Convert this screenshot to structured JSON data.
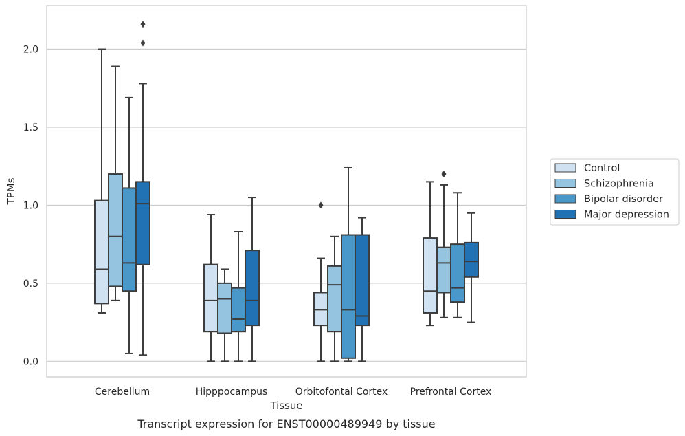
{
  "chart_data": {
    "type": "boxplot",
    "title": "",
    "caption": "Transcript expression for ENST00000489949 by tissue",
    "xlabel": "Tissue",
    "ylabel": "TPMs",
    "ylim": [
      -0.1,
      2.28
    ],
    "yticks": [
      0.0,
      0.5,
      1.0,
      1.5,
      2.0
    ],
    "ytick_labels": [
      "0.0",
      "0.5",
      "1.0",
      "1.5",
      "2.0"
    ],
    "grid": "horizontal",
    "legend_position": "right",
    "categories": [
      "Cerebellum",
      "Hipppocampus",
      "Orbitofontal Cortex",
      "Prefrontal Cortex"
    ],
    "series": [
      {
        "name": "Control",
        "color": "#d0e1f2",
        "boxes": [
          {
            "whislo": 0.31,
            "q1": 0.37,
            "med": 0.59,
            "q3": 1.03,
            "whishi": 2.0,
            "fliers": []
          },
          {
            "whislo": 0.0,
            "q1": 0.19,
            "med": 0.39,
            "q3": 0.62,
            "whishi": 0.94,
            "fliers": []
          },
          {
            "whislo": 0.0,
            "q1": 0.23,
            "med": 0.33,
            "q3": 0.44,
            "whishi": 0.66,
            "fliers": [
              1.0
            ]
          },
          {
            "whislo": 0.23,
            "q1": 0.31,
            "med": 0.45,
            "q3": 0.79,
            "whishi": 1.15,
            "fliers": []
          }
        ]
      },
      {
        "name": "Schizophrenia",
        "color": "#94c4df",
        "boxes": [
          {
            "whislo": 0.39,
            "q1": 0.48,
            "med": 0.8,
            "q3": 1.2,
            "whishi": 1.89,
            "fliers": []
          },
          {
            "whislo": 0.0,
            "q1": 0.18,
            "med": 0.4,
            "q3": 0.5,
            "whishi": 0.59,
            "fliers": []
          },
          {
            "whislo": 0.0,
            "q1": 0.19,
            "med": 0.49,
            "q3": 0.61,
            "whishi": 0.8,
            "fliers": []
          },
          {
            "whislo": 0.28,
            "q1": 0.44,
            "med": 0.63,
            "q3": 0.73,
            "whishi": 1.13,
            "fliers": [
              1.2
            ]
          }
        ]
      },
      {
        "name": "Bipolar disorder",
        "color": "#4a98c9",
        "boxes": [
          {
            "whislo": 0.05,
            "q1": 0.45,
            "med": 0.63,
            "q3": 1.11,
            "whishi": 1.69,
            "fliers": []
          },
          {
            "whislo": 0.0,
            "q1": 0.19,
            "med": 0.27,
            "q3": 0.47,
            "whishi": 0.83,
            "fliers": []
          },
          {
            "whislo": 0.0,
            "q1": 0.02,
            "med": 0.33,
            "q3": 0.81,
            "whishi": 1.24,
            "fliers": []
          },
          {
            "whislo": 0.28,
            "q1": 0.38,
            "med": 0.47,
            "q3": 0.75,
            "whishi": 1.08,
            "fliers": []
          }
        ]
      },
      {
        "name": "Major depression",
        "color": "#2171b5",
        "boxes": [
          {
            "whislo": 0.04,
            "q1": 0.62,
            "med": 1.01,
            "q3": 1.15,
            "whishi": 1.78,
            "fliers": [
              2.04,
              2.16
            ]
          },
          {
            "whislo": 0.0,
            "q1": 0.23,
            "med": 0.39,
            "q3": 0.71,
            "whishi": 1.05,
            "fliers": []
          },
          {
            "whislo": 0.0,
            "q1": 0.23,
            "med": 0.29,
            "q3": 0.81,
            "whishi": 0.92,
            "fliers": []
          },
          {
            "whislo": 0.25,
            "q1": 0.54,
            "med": 0.64,
            "q3": 0.76,
            "whishi": 0.95,
            "fliers": []
          }
        ]
      }
    ]
  }
}
